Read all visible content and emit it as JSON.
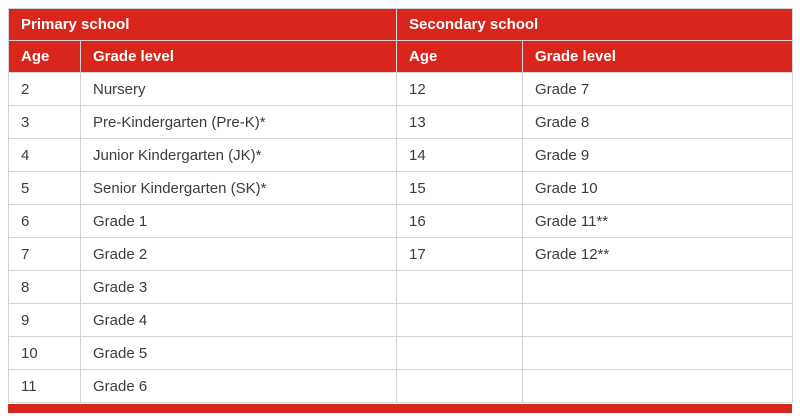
{
  "colors": {
    "header_red": "#d8261c",
    "header_text": "#ffffff",
    "body_text": "#3c3c3c",
    "border": "#d4d4d4"
  },
  "table": {
    "primary": {
      "title": "Primary school",
      "age_header": "Age",
      "grade_header": "Grade level",
      "rows": [
        [
          "2",
          "Nursery"
        ],
        [
          "3",
          "Pre-Kindergarten (Pre-K)*"
        ],
        [
          "4",
          "Junior Kindergarten (JK)*"
        ],
        [
          "5",
          "Senior Kindergarten (SK)*"
        ],
        [
          "6",
          "Grade 1"
        ],
        [
          "7",
          "Grade 2"
        ],
        [
          "8",
          "Grade 3"
        ],
        [
          "9",
          "Grade 4"
        ],
        [
          "10",
          "Grade 5"
        ],
        [
          "11",
          "Grade 6"
        ]
      ]
    },
    "secondary": {
      "title": "Secondary school",
      "age_header": "Age",
      "grade_header": "Grade level",
      "rows": [
        [
          "12",
          "Grade 7"
        ],
        [
          "13",
          "Grade 8"
        ],
        [
          "14",
          "Grade 9"
        ],
        [
          "15",
          "Grade 10"
        ],
        [
          "16",
          "Grade 11**"
        ],
        [
          "17",
          "Grade 12**"
        ],
        [
          "",
          ""
        ],
        [
          "",
          ""
        ],
        [
          "",
          ""
        ],
        [
          "",
          ""
        ]
      ]
    }
  }
}
